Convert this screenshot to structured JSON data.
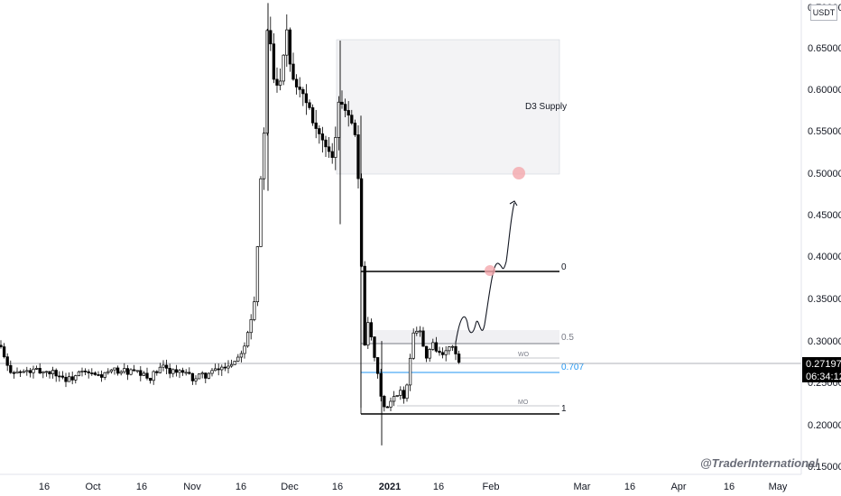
{
  "chart_data": {
    "type": "candlestick",
    "currency": "USDT",
    "ylim": [
      0.14,
      0.705
    ],
    "y_ticks": [
      "0.70000",
      "0.65000",
      "0.60000",
      "0.55000",
      "0.50000",
      "0.45000",
      "0.40000",
      "0.35000",
      "0.30000",
      "0.25000",
      "0.20000",
      "0.15000"
    ],
    "x_ticks": [
      "16",
      "Oct",
      "16",
      "Nov",
      "16",
      "Dec",
      "16",
      "2021",
      "16",
      "Feb",
      "Mar",
      "16",
      "Apr",
      "16",
      "May"
    ],
    "price_label": "0.27197",
    "timer_label": "06:34:12",
    "last_price": 0.27197,
    "supply_zone": {
      "label": "D3 Supply",
      "top": 0.66,
      "bottom": 0.5
    },
    "fib_levels": [
      {
        "label": "0",
        "value": 0.382
      },
      {
        "label": "0.5",
        "value": 0.297
      },
      {
        "label": "0.707",
        "value": 0.262
      },
      {
        "label": "1",
        "value": 0.212
      }
    ],
    "tags": [
      "WO",
      "MO"
    ],
    "key_candles": [
      {
        "date": "late Nov",
        "high": 0.705,
        "low": 0.48
      },
      {
        "date": "mid Dec",
        "high": 0.66,
        "low": 0.44
      },
      {
        "date": "late Dec",
        "high": 0.57,
        "low": 0.22
      },
      {
        "date": "early Jan",
        "high": 0.3,
        "low": 0.175
      }
    ]
  },
  "watermark": "@TraderInternational",
  "colors": {
    "bull": "#ffffff",
    "bear": "#000000",
    "fib": "#000000",
    "fib_mid": "#787b86",
    "fib_707": "#2196f3",
    "zone": "#f4f4f6",
    "circle": "#f4a7ad"
  }
}
